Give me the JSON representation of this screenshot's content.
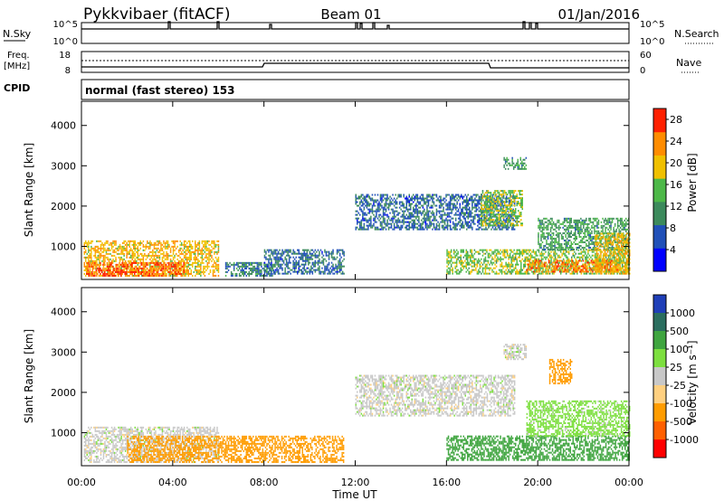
{
  "header": {
    "site": "Pykkvibaer (fitACF)",
    "beam": "Beam 01",
    "date": "01/Jan/2016"
  },
  "top_panels": {
    "nsky_label": "N.Sky",
    "nsearch_label": "N.Search",
    "nsky_ticks": [
      "10^5",
      "10^0"
    ],
    "nsearch_ticks": [
      "10^5",
      "10^0"
    ],
    "freq_label_1": "Freq.",
    "freq_label_2": "[MHz]",
    "freq_ticks": [
      "18",
      "8"
    ],
    "nave_label": "Nave",
    "nave_ticks": [
      "60",
      "0"
    ],
    "cpid_label": "CPID",
    "cpid_text": "normal (fast stereo) 153"
  },
  "colors": {
    "power": [
      "#0000ff",
      "#2050b8",
      "#3c8a5c",
      "#4db848",
      "#f0c000",
      "#ff8c00",
      "#ff2000"
    ],
    "velocity": [
      "#1f3fb8",
      "#2b6e5f",
      "#3fa53f",
      "#7ddf3f",
      "#c8c8c8",
      "#ffd080",
      "#ff9c00",
      "#ff6000",
      "#ff0000"
    ]
  },
  "chart_data": [
    {
      "type": "heatmap",
      "name": "power",
      "ylabel": "Slant Range [km]",
      "xlabel": "Time UT",
      "x_ticks": [
        "00:00",
        "04:00",
        "08:00",
        "12:00",
        "16:00",
        "20:00",
        "00:00"
      ],
      "y_ticks": [
        "1000",
        "2000",
        "3000",
        "4000"
      ],
      "ylim": [
        180,
        4600
      ],
      "xlim_hours": [
        0,
        24
      ],
      "colorbar_label": "Power [dB]",
      "colorbar_ticks": [
        "4",
        "8",
        "12",
        "16",
        "20",
        "24",
        "28"
      ],
      "colorbar_range": [
        0,
        30
      ],
      "regions": [
        {
          "t0": 0.1,
          "t1": 6.0,
          "r0": 250,
          "r1": 1150,
          "v": 20
        },
        {
          "t0": 0.2,
          "t1": 4.5,
          "r0": 250,
          "r1": 600,
          "v": 26
        },
        {
          "t0": 6.3,
          "t1": 8.5,
          "r0": 250,
          "r1": 600,
          "v": 10
        },
        {
          "t0": 8.0,
          "t1": 11.5,
          "r0": 300,
          "r1": 900,
          "v": 8
        },
        {
          "t0": 12.0,
          "t1": 19.0,
          "r0": 1400,
          "r1": 2300,
          "v": 8
        },
        {
          "t0": 17.5,
          "t1": 19.3,
          "r0": 1500,
          "r1": 2400,
          "v": 16
        },
        {
          "t0": 18.5,
          "t1": 19.5,
          "r0": 2900,
          "r1": 3200,
          "v": 12
        },
        {
          "t0": 16.0,
          "t1": 24.0,
          "r0": 300,
          "r1": 900,
          "v": 16
        },
        {
          "t0": 19.5,
          "t1": 23.5,
          "r0": 350,
          "r1": 650,
          "v": 24
        },
        {
          "t0": 20.0,
          "t1": 24.0,
          "r0": 900,
          "r1": 1700,
          "v": 12
        },
        {
          "t0": 22.5,
          "t1": 24.0,
          "r0": 300,
          "r1": 1300,
          "v": 20
        }
      ]
    },
    {
      "type": "heatmap",
      "name": "velocity",
      "ylabel": "Slant Range [km]",
      "xlabel": "Time UT",
      "x_ticks": [
        "00:00",
        "04:00",
        "08:00",
        "12:00",
        "16:00",
        "20:00",
        "00:00"
      ],
      "y_ticks": [
        "1000",
        "2000",
        "3000",
        "4000"
      ],
      "ylim": [
        180,
        4600
      ],
      "xlim_hours": [
        0,
        24
      ],
      "colorbar_label": "Velocity [m s⁻¹]",
      "colorbar_ticks": [
        "1000",
        "500",
        "100",
        "25",
        "-25",
        "-100",
        "-500",
        "-1000"
      ],
      "regions": [
        {
          "t0": 0.1,
          "t1": 6.0,
          "r0": 250,
          "r1": 1150,
          "v": 0
        },
        {
          "t0": 2.0,
          "t1": 6.0,
          "r0": 250,
          "r1": 900,
          "v": -200
        },
        {
          "t0": 6.0,
          "t1": 11.5,
          "r0": 250,
          "r1": 900,
          "v": -150
        },
        {
          "t0": 12.0,
          "t1": 19.0,
          "r0": 1400,
          "r1": 2400,
          "v": 0
        },
        {
          "t0": 18.5,
          "t1": 19.5,
          "r0": 2800,
          "r1": 3200,
          "v": 0
        },
        {
          "t0": 16.0,
          "t1": 24.0,
          "r0": 300,
          "r1": 900,
          "v": 150
        },
        {
          "t0": 19.5,
          "t1": 24.0,
          "r0": 900,
          "r1": 1800,
          "v": 50
        },
        {
          "t0": 20.5,
          "t1": 21.5,
          "r0": 2200,
          "r1": 2800,
          "v": -300
        }
      ]
    }
  ]
}
